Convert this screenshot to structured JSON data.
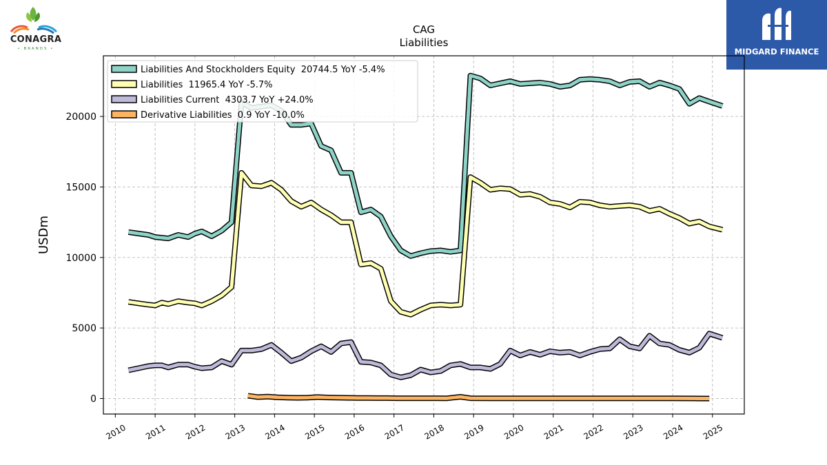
{
  "brand_left": {
    "name": "CONAGRA",
    "sub": "• BRANDS •"
  },
  "brand_right": {
    "name": "MIDGARD FINANCE"
  },
  "chart_data": {
    "type": "line",
    "title": "CAG",
    "subtitle": "Liabilities",
    "ylabel": "USDm",
    "xlabel": "",
    "xlim": [
      2009.7,
      2025.8
    ],
    "ylim": [
      -1100,
      24300
    ],
    "x_ticks": [
      2010,
      2011,
      2012,
      2013,
      2014,
      2015,
      2016,
      2017,
      2018,
      2019,
      2020,
      2021,
      2022,
      2023,
      2024,
      2025
    ],
    "y_ticks": [
      0,
      5000,
      10000,
      15000,
      20000
    ],
    "grid": true,
    "legend_position": "upper-left",
    "series": [
      {
        "name": "Liabilities And Stockholders Equity  20744.5 YoY -5.4%",
        "color": "#8dd3c7",
        "points": [
          [
            2010.33,
            11800
          ],
          [
            2010.58,
            11700
          ],
          [
            2010.83,
            11600
          ],
          [
            2011.0,
            11450
          ],
          [
            2011.17,
            11400
          ],
          [
            2011.33,
            11350
          ],
          [
            2011.58,
            11600
          ],
          [
            2011.83,
            11450
          ],
          [
            2012.0,
            11700
          ],
          [
            2012.17,
            11850
          ],
          [
            2012.42,
            11500
          ],
          [
            2012.67,
            11900
          ],
          [
            2012.92,
            12500
          ],
          [
            2013.17,
            21000
          ],
          [
            2013.42,
            20600
          ],
          [
            2013.67,
            20700
          ],
          [
            2013.92,
            20800
          ],
          [
            2014.17,
            20400
          ],
          [
            2014.42,
            19400
          ],
          [
            2014.67,
            19400
          ],
          [
            2014.92,
            19500
          ],
          [
            2015.17,
            17900
          ],
          [
            2015.42,
            17600
          ],
          [
            2015.67,
            16000
          ],
          [
            2015.92,
            16000
          ],
          [
            2016.17,
            13200
          ],
          [
            2016.42,
            13400
          ],
          [
            2016.67,
            12900
          ],
          [
            2016.92,
            11500
          ],
          [
            2017.17,
            10500
          ],
          [
            2017.42,
            10100
          ],
          [
            2017.67,
            10300
          ],
          [
            2017.92,
            10450
          ],
          [
            2018.17,
            10500
          ],
          [
            2018.42,
            10400
          ],
          [
            2018.67,
            10500
          ],
          [
            2018.92,
            22900
          ],
          [
            2019.17,
            22700
          ],
          [
            2019.42,
            22200
          ],
          [
            2019.67,
            22350
          ],
          [
            2019.92,
            22500
          ],
          [
            2020.17,
            22300
          ],
          [
            2020.42,
            22350
          ],
          [
            2020.67,
            22400
          ],
          [
            2020.92,
            22300
          ],
          [
            2021.17,
            22100
          ],
          [
            2021.42,
            22200
          ],
          [
            2021.67,
            22600
          ],
          [
            2021.92,
            22650
          ],
          [
            2022.17,
            22600
          ],
          [
            2022.42,
            22500
          ],
          [
            2022.67,
            22200
          ],
          [
            2022.92,
            22450
          ],
          [
            2023.17,
            22500
          ],
          [
            2023.42,
            22100
          ],
          [
            2023.67,
            22400
          ],
          [
            2023.92,
            22200
          ],
          [
            2024.17,
            21950
          ],
          [
            2024.42,
            20900
          ],
          [
            2024.67,
            21300
          ],
          [
            2024.92,
            21050
          ],
          [
            2025.25,
            20744.5
          ]
        ]
      },
      {
        "name": "Liabilities  11965.4 YoY -5.7%",
        "color": "#ffffb3",
        "points": [
          [
            2010.33,
            6850
          ],
          [
            2010.58,
            6750
          ],
          [
            2010.83,
            6650
          ],
          [
            2011.0,
            6600
          ],
          [
            2011.17,
            6800
          ],
          [
            2011.33,
            6700
          ],
          [
            2011.58,
            6900
          ],
          [
            2011.83,
            6800
          ],
          [
            2012.0,
            6750
          ],
          [
            2012.17,
            6600
          ],
          [
            2012.42,
            6900
          ],
          [
            2012.67,
            7300
          ],
          [
            2012.92,
            7900
          ],
          [
            2013.17,
            16000
          ],
          [
            2013.42,
            15100
          ],
          [
            2013.67,
            15050
          ],
          [
            2013.92,
            15300
          ],
          [
            2014.17,
            14800
          ],
          [
            2014.42,
            14000
          ],
          [
            2014.67,
            13600
          ],
          [
            2014.92,
            13900
          ],
          [
            2015.17,
            13400
          ],
          [
            2015.42,
            13000
          ],
          [
            2015.67,
            12500
          ],
          [
            2015.92,
            12500
          ],
          [
            2016.17,
            9500
          ],
          [
            2016.42,
            9600
          ],
          [
            2016.67,
            9200
          ],
          [
            2016.92,
            6900
          ],
          [
            2017.17,
            6150
          ],
          [
            2017.42,
            5950
          ],
          [
            2017.67,
            6300
          ],
          [
            2017.92,
            6600
          ],
          [
            2018.17,
            6650
          ],
          [
            2018.42,
            6600
          ],
          [
            2018.67,
            6650
          ],
          [
            2018.92,
            15700
          ],
          [
            2019.17,
            15300
          ],
          [
            2019.42,
            14800
          ],
          [
            2019.67,
            14900
          ],
          [
            2019.92,
            14850
          ],
          [
            2020.17,
            14450
          ],
          [
            2020.42,
            14500
          ],
          [
            2020.67,
            14300
          ],
          [
            2020.92,
            13900
          ],
          [
            2021.17,
            13800
          ],
          [
            2021.42,
            13550
          ],
          [
            2021.67,
            13950
          ],
          [
            2021.92,
            13900
          ],
          [
            2022.17,
            13700
          ],
          [
            2022.42,
            13600
          ],
          [
            2022.67,
            13650
          ],
          [
            2022.92,
            13700
          ],
          [
            2023.17,
            13600
          ],
          [
            2023.42,
            13300
          ],
          [
            2023.67,
            13450
          ],
          [
            2023.92,
            13100
          ],
          [
            2024.17,
            12800
          ],
          [
            2024.42,
            12400
          ],
          [
            2024.67,
            12550
          ],
          [
            2024.92,
            12200
          ],
          [
            2025.25,
            11965.4
          ]
        ]
      },
      {
        "name": "Liabilities Current  4303.7 YoY +24.0%",
        "color": "#bebada",
        "points": [
          [
            2010.33,
            2000
          ],
          [
            2010.58,
            2150
          ],
          [
            2010.83,
            2300
          ],
          [
            2011.0,
            2350
          ],
          [
            2011.17,
            2350
          ],
          [
            2011.33,
            2200
          ],
          [
            2011.58,
            2400
          ],
          [
            2011.83,
            2400
          ],
          [
            2012.0,
            2250
          ],
          [
            2012.17,
            2150
          ],
          [
            2012.42,
            2200
          ],
          [
            2012.67,
            2650
          ],
          [
            2012.92,
            2400
          ],
          [
            2013.17,
            3400
          ],
          [
            2013.42,
            3400
          ],
          [
            2013.67,
            3500
          ],
          [
            2013.92,
            3800
          ],
          [
            2014.17,
            3250
          ],
          [
            2014.42,
            2650
          ],
          [
            2014.67,
            2900
          ],
          [
            2014.92,
            3350
          ],
          [
            2015.17,
            3700
          ],
          [
            2015.42,
            3300
          ],
          [
            2015.67,
            3900
          ],
          [
            2015.92,
            4000
          ],
          [
            2016.17,
            2600
          ],
          [
            2016.42,
            2550
          ],
          [
            2016.67,
            2350
          ],
          [
            2016.92,
            1700
          ],
          [
            2017.17,
            1500
          ],
          [
            2017.42,
            1650
          ],
          [
            2017.67,
            2050
          ],
          [
            2017.92,
            1850
          ],
          [
            2018.17,
            1950
          ],
          [
            2018.42,
            2350
          ],
          [
            2018.67,
            2450
          ],
          [
            2018.92,
            2200
          ],
          [
            2019.17,
            2200
          ],
          [
            2019.42,
            2100
          ],
          [
            2019.67,
            2450
          ],
          [
            2019.92,
            3400
          ],
          [
            2020.17,
            3050
          ],
          [
            2020.42,
            3300
          ],
          [
            2020.67,
            3100
          ],
          [
            2020.92,
            3350
          ],
          [
            2021.17,
            3250
          ],
          [
            2021.42,
            3300
          ],
          [
            2021.67,
            3050
          ],
          [
            2021.92,
            3300
          ],
          [
            2022.17,
            3500
          ],
          [
            2022.42,
            3550
          ],
          [
            2022.67,
            4200
          ],
          [
            2022.92,
            3700
          ],
          [
            2023.17,
            3550
          ],
          [
            2023.42,
            4450
          ],
          [
            2023.67,
            3900
          ],
          [
            2023.92,
            3800
          ],
          [
            2024.17,
            3450
          ],
          [
            2024.42,
            3250
          ],
          [
            2024.67,
            3600
          ],
          [
            2024.92,
            4600
          ],
          [
            2025.25,
            4303.7
          ]
        ]
      },
      {
        "name": "Derivative Liabilities  0.9 YoY -10.0%",
        "color": "#fdb462",
        "points": [
          [
            2013.33,
            200
          ],
          [
            2013.58,
            100
          ],
          [
            2013.83,
            130
          ],
          [
            2014.08,
            80
          ],
          [
            2014.33,
            60
          ],
          [
            2014.58,
            50
          ],
          [
            2014.83,
            60
          ],
          [
            2015.08,
            100
          ],
          [
            2015.33,
            70
          ],
          [
            2015.58,
            60
          ],
          [
            2015.83,
            50
          ],
          [
            2016.08,
            40
          ],
          [
            2016.33,
            40
          ],
          [
            2016.58,
            30
          ],
          [
            2016.83,
            30
          ],
          [
            2017.08,
            20
          ],
          [
            2017.33,
            20
          ],
          [
            2017.58,
            20
          ],
          [
            2017.83,
            20
          ],
          [
            2018.08,
            20
          ],
          [
            2018.33,
            15
          ],
          [
            2018.67,
            120
          ],
          [
            2018.92,
            20
          ],
          [
            2019.5,
            15
          ],
          [
            2020.0,
            15
          ],
          [
            2020.5,
            15
          ],
          [
            2021.0,
            15
          ],
          [
            2021.5,
            15
          ],
          [
            2022.0,
            15
          ],
          [
            2022.5,
            15
          ],
          [
            2023.0,
            15
          ],
          [
            2023.5,
            10
          ],
          [
            2024.0,
            10
          ],
          [
            2024.5,
            5
          ],
          [
            2024.92,
            0.9
          ]
        ]
      }
    ]
  }
}
